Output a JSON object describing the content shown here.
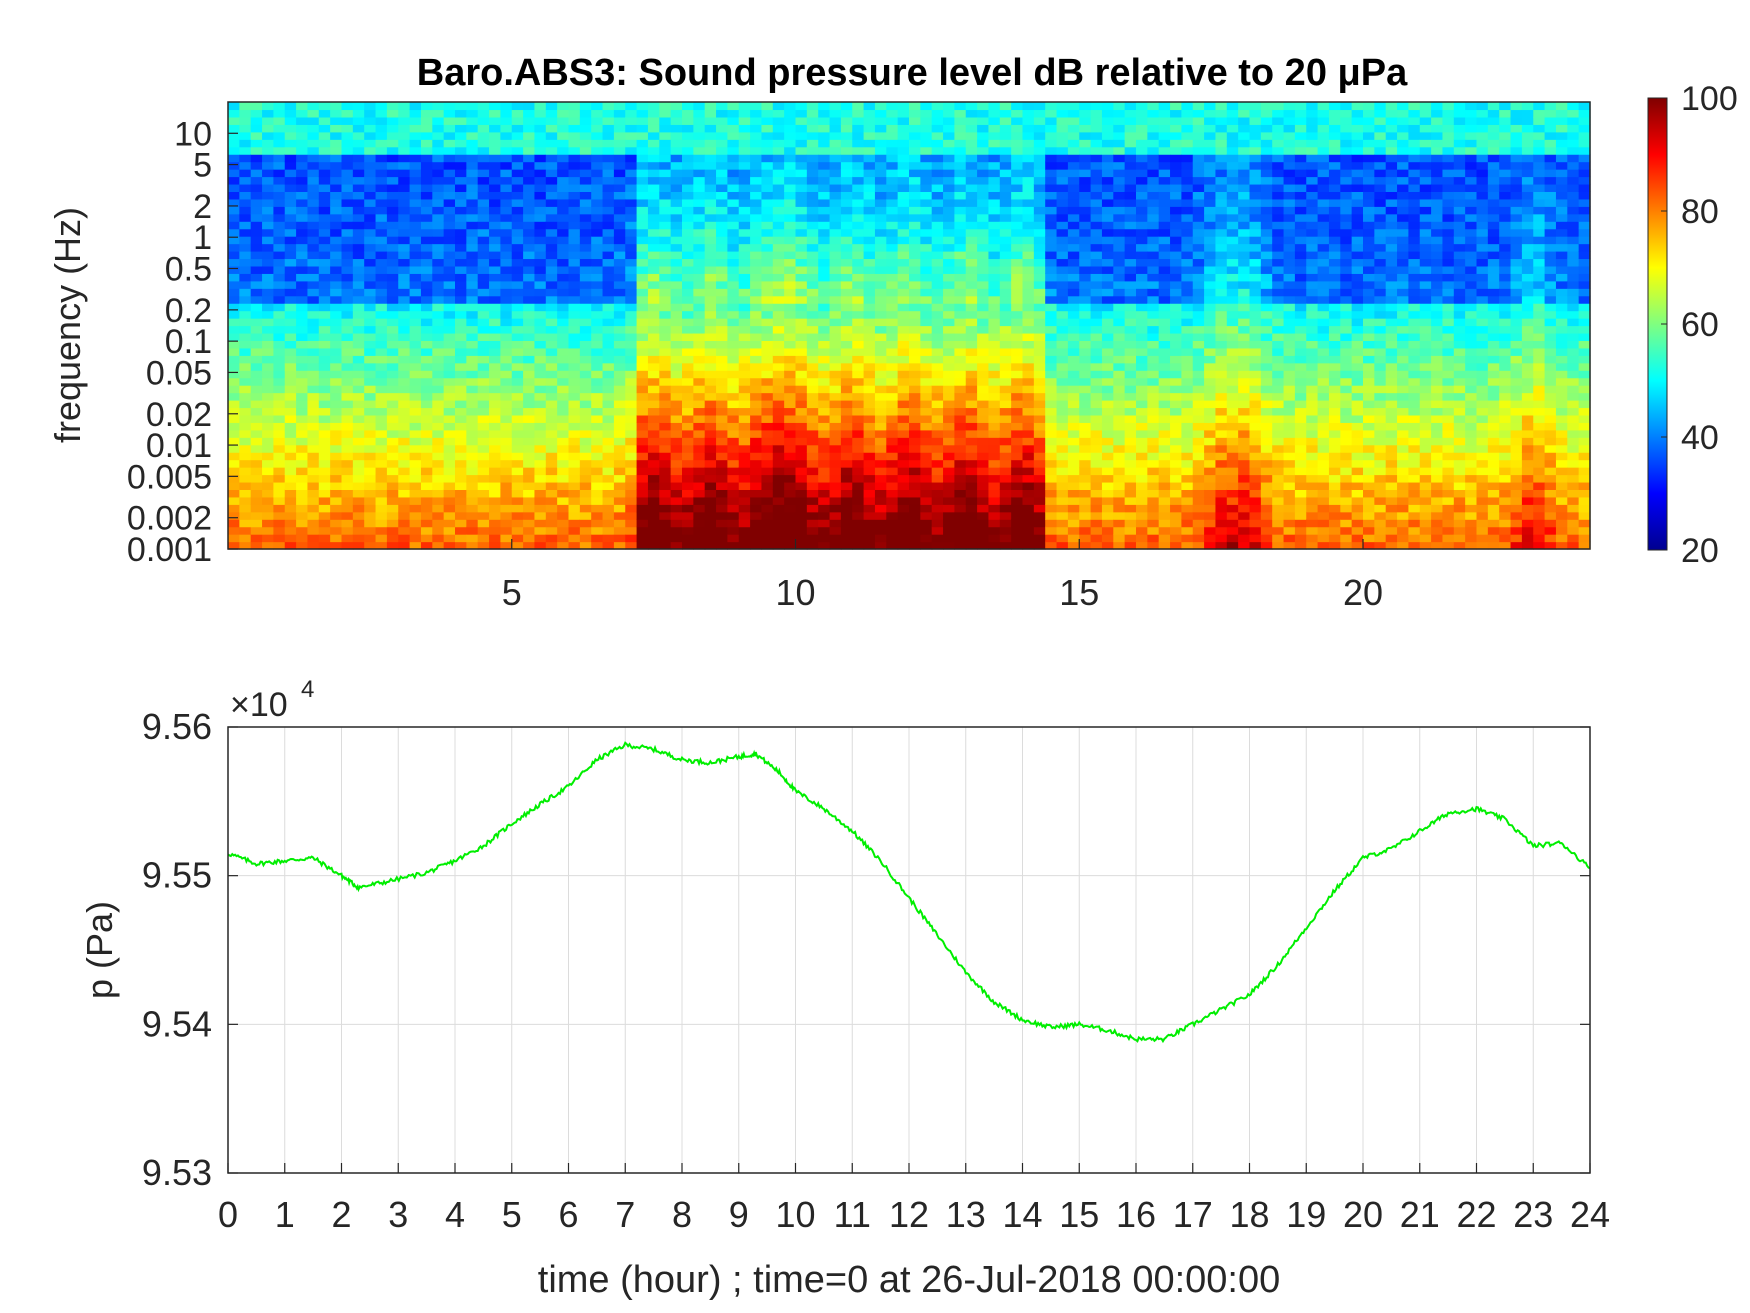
{
  "chart_data": [
    {
      "type": "heatmap",
      "title": "Baro.ABS3: Sound pressure level dB relative to 20 μPa",
      "xlabel": "",
      "ylabel": "frequency (Hz)",
      "xlim": [
        0,
        24
      ],
      "ylim": [
        0.001,
        20
      ],
      "y_scale": "log",
      "x_ticks": [
        5,
        10,
        15,
        20
      ],
      "y_ticks": [
        0.001,
        0.002,
        0.005,
        0.01,
        0.02,
        0.05,
        0.1,
        0.2,
        0.5,
        1,
        2,
        5,
        10
      ],
      "y_tick_labels": [
        "0.001",
        "0.002",
        "0.005",
        "0.01",
        "0.02",
        "0.05",
        "0.1",
        "0.2",
        "0.5",
        "1",
        "2",
        "5",
        "10"
      ],
      "colormap": "jet",
      "colorbar": {
        "range": [
          20,
          100
        ],
        "ticks": [
          20,
          40,
          60,
          80,
          100
        ]
      },
      "grid": false,
      "description_of_bursts_hours": [
        7.5,
        8.5,
        9.5,
        10,
        11,
        12,
        13,
        14,
        17.5,
        18,
        23
      ]
    },
    {
      "type": "line",
      "title": "",
      "xlabel": "time (hour) ; time=0 at 26-Jul-2018 00:00:00",
      "ylabel": "p (Pa)",
      "xlim": [
        0,
        24
      ],
      "ylim": [
        95300,
        95600
      ],
      "x_ticks": [
        0,
        1,
        2,
        3,
        4,
        5,
        6,
        7,
        8,
        9,
        10,
        11,
        12,
        13,
        14,
        15,
        16,
        17,
        18,
        19,
        20,
        21,
        22,
        23,
        24
      ],
      "y_tick_labels": [
        "9.53",
        "9.54",
        "9.55",
        "9.56"
      ],
      "y_exponent_label": "×10",
      "y_exponent_power": "4",
      "grid": true,
      "line_color": "#00ee00",
      "series": [
        {
          "x": [
            0,
            0.5,
            1,
            1.5,
            2,
            2.3,
            2.8,
            3.5,
            4,
            4.5,
            5,
            5.5,
            6,
            6.5,
            7,
            7.5,
            8,
            8.5,
            9,
            9.3,
            9.7,
            10,
            10.5,
            11,
            11.5,
            12,
            12.5,
            13,
            13.5,
            14,
            14.5,
            15,
            15.5,
            16,
            16.5,
            17,
            17.5,
            18,
            18.5,
            19,
            19.5,
            20,
            20.5,
            21,
            21.5,
            22,
            22.5,
            23,
            23.5,
            24
          ],
          "y": [
            95515,
            95508,
            95510,
            95512,
            95500,
            95492,
            95496,
            95502,
            95510,
            95520,
            95535,
            95548,
            95560,
            95578,
            95588,
            95585,
            95578,
            95576,
            95580,
            95582,
            95570,
            95557,
            95545,
            95530,
            95510,
            95485,
            95460,
            95435,
            95415,
            95403,
            95398,
            95400,
            95396,
            95390,
            95390,
            95400,
            95410,
            95420,
            95440,
            95465,
            95490,
            95512,
            95518,
            95530,
            95542,
            95545,
            95538,
            95520,
            95522,
            95505
          ]
        }
      ]
    }
  ]
}
